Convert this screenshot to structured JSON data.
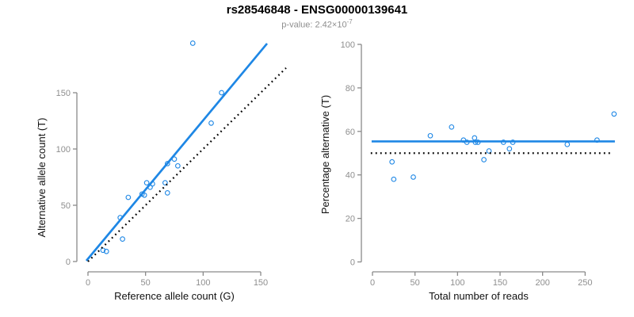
{
  "header": {
    "title": "rs28546848 - ENSG00000139641",
    "pvalue_label": "p-value: ",
    "pvalue_mantissa": "2.42×10",
    "pvalue_exponent": "-7"
  },
  "theme": {
    "accent_blue": "#1E87E5",
    "dotted_black": "#000000",
    "axis_gray": "#8A8A8A",
    "tick_label_gray": "#8E8E8E",
    "subtitle_gray": "#8E8E8E"
  },
  "chart_data": [
    {
      "type": "scatter",
      "panel": "left",
      "xlabel": "Reference allele count (G)",
      "ylabel": "Alternative allele count (T)",
      "xticks": [
        0,
        50,
        100,
        150
      ],
      "yticks": [
        0,
        50,
        100,
        150
      ],
      "xlim": [
        0,
        172
      ],
      "ylim": [
        0,
        199
      ],
      "grid": false,
      "points": [
        [
          13,
          10
        ],
        [
          16,
          9
        ],
        [
          28,
          39
        ],
        [
          30,
          20
        ],
        [
          35,
          57
        ],
        [
          47,
          60
        ],
        [
          49,
          59
        ],
        [
          51,
          70
        ],
        [
          54,
          66
        ],
        [
          56,
          69
        ],
        [
          67,
          70
        ],
        [
          69,
          61
        ],
        [
          69,
          87
        ],
        [
          75,
          91
        ],
        [
          78,
          85
        ],
        [
          91,
          194
        ],
        [
          107,
          123
        ],
        [
          116,
          150
        ]
      ],
      "lines": [
        {
          "name": "regression-line",
          "style": "solid",
          "x1": -1.4,
          "y1": 0.7,
          "x2": 155.5,
          "y2": 193.7
        },
        {
          "name": "identity-line",
          "style": "dotted",
          "x1": 0,
          "y1": 0,
          "x2": 172,
          "y2": 172
        }
      ]
    },
    {
      "type": "scatter",
      "panel": "right",
      "xlabel": "Total number of reads",
      "ylabel": "Percentage alternative (T)",
      "xticks": [
        0,
        50,
        100,
        150,
        200,
        250
      ],
      "yticks": [
        0,
        20,
        40,
        60,
        80,
        100
      ],
      "xlim": [
        0,
        298
      ],
      "ylim": [
        0,
        100
      ],
      "grid": false,
      "points": [
        [
          23,
          46
        ],
        [
          25,
          38
        ],
        [
          48,
          39
        ],
        [
          68,
          58
        ],
        [
          93,
          62
        ],
        [
          107,
          56
        ],
        [
          111,
          55
        ],
        [
          120,
          57
        ],
        [
          121,
          55
        ],
        [
          124,
          55
        ],
        [
          131,
          47
        ],
        [
          137,
          51
        ],
        [
          154,
          55
        ],
        [
          161,
          52
        ],
        [
          165,
          55
        ],
        [
          229,
          54
        ],
        [
          264,
          56
        ],
        [
          284,
          68
        ]
      ],
      "lines": [
        {
          "name": "mean-percentage-line",
          "style": "solid",
          "x1": -1,
          "y1": 55.4,
          "x2": 285,
          "y2": 55.4
        },
        {
          "name": "expected-50-percent-line",
          "style": "dotted",
          "x1": -2,
          "y1": 50,
          "x2": 281,
          "y2": 50
        }
      ]
    }
  ]
}
